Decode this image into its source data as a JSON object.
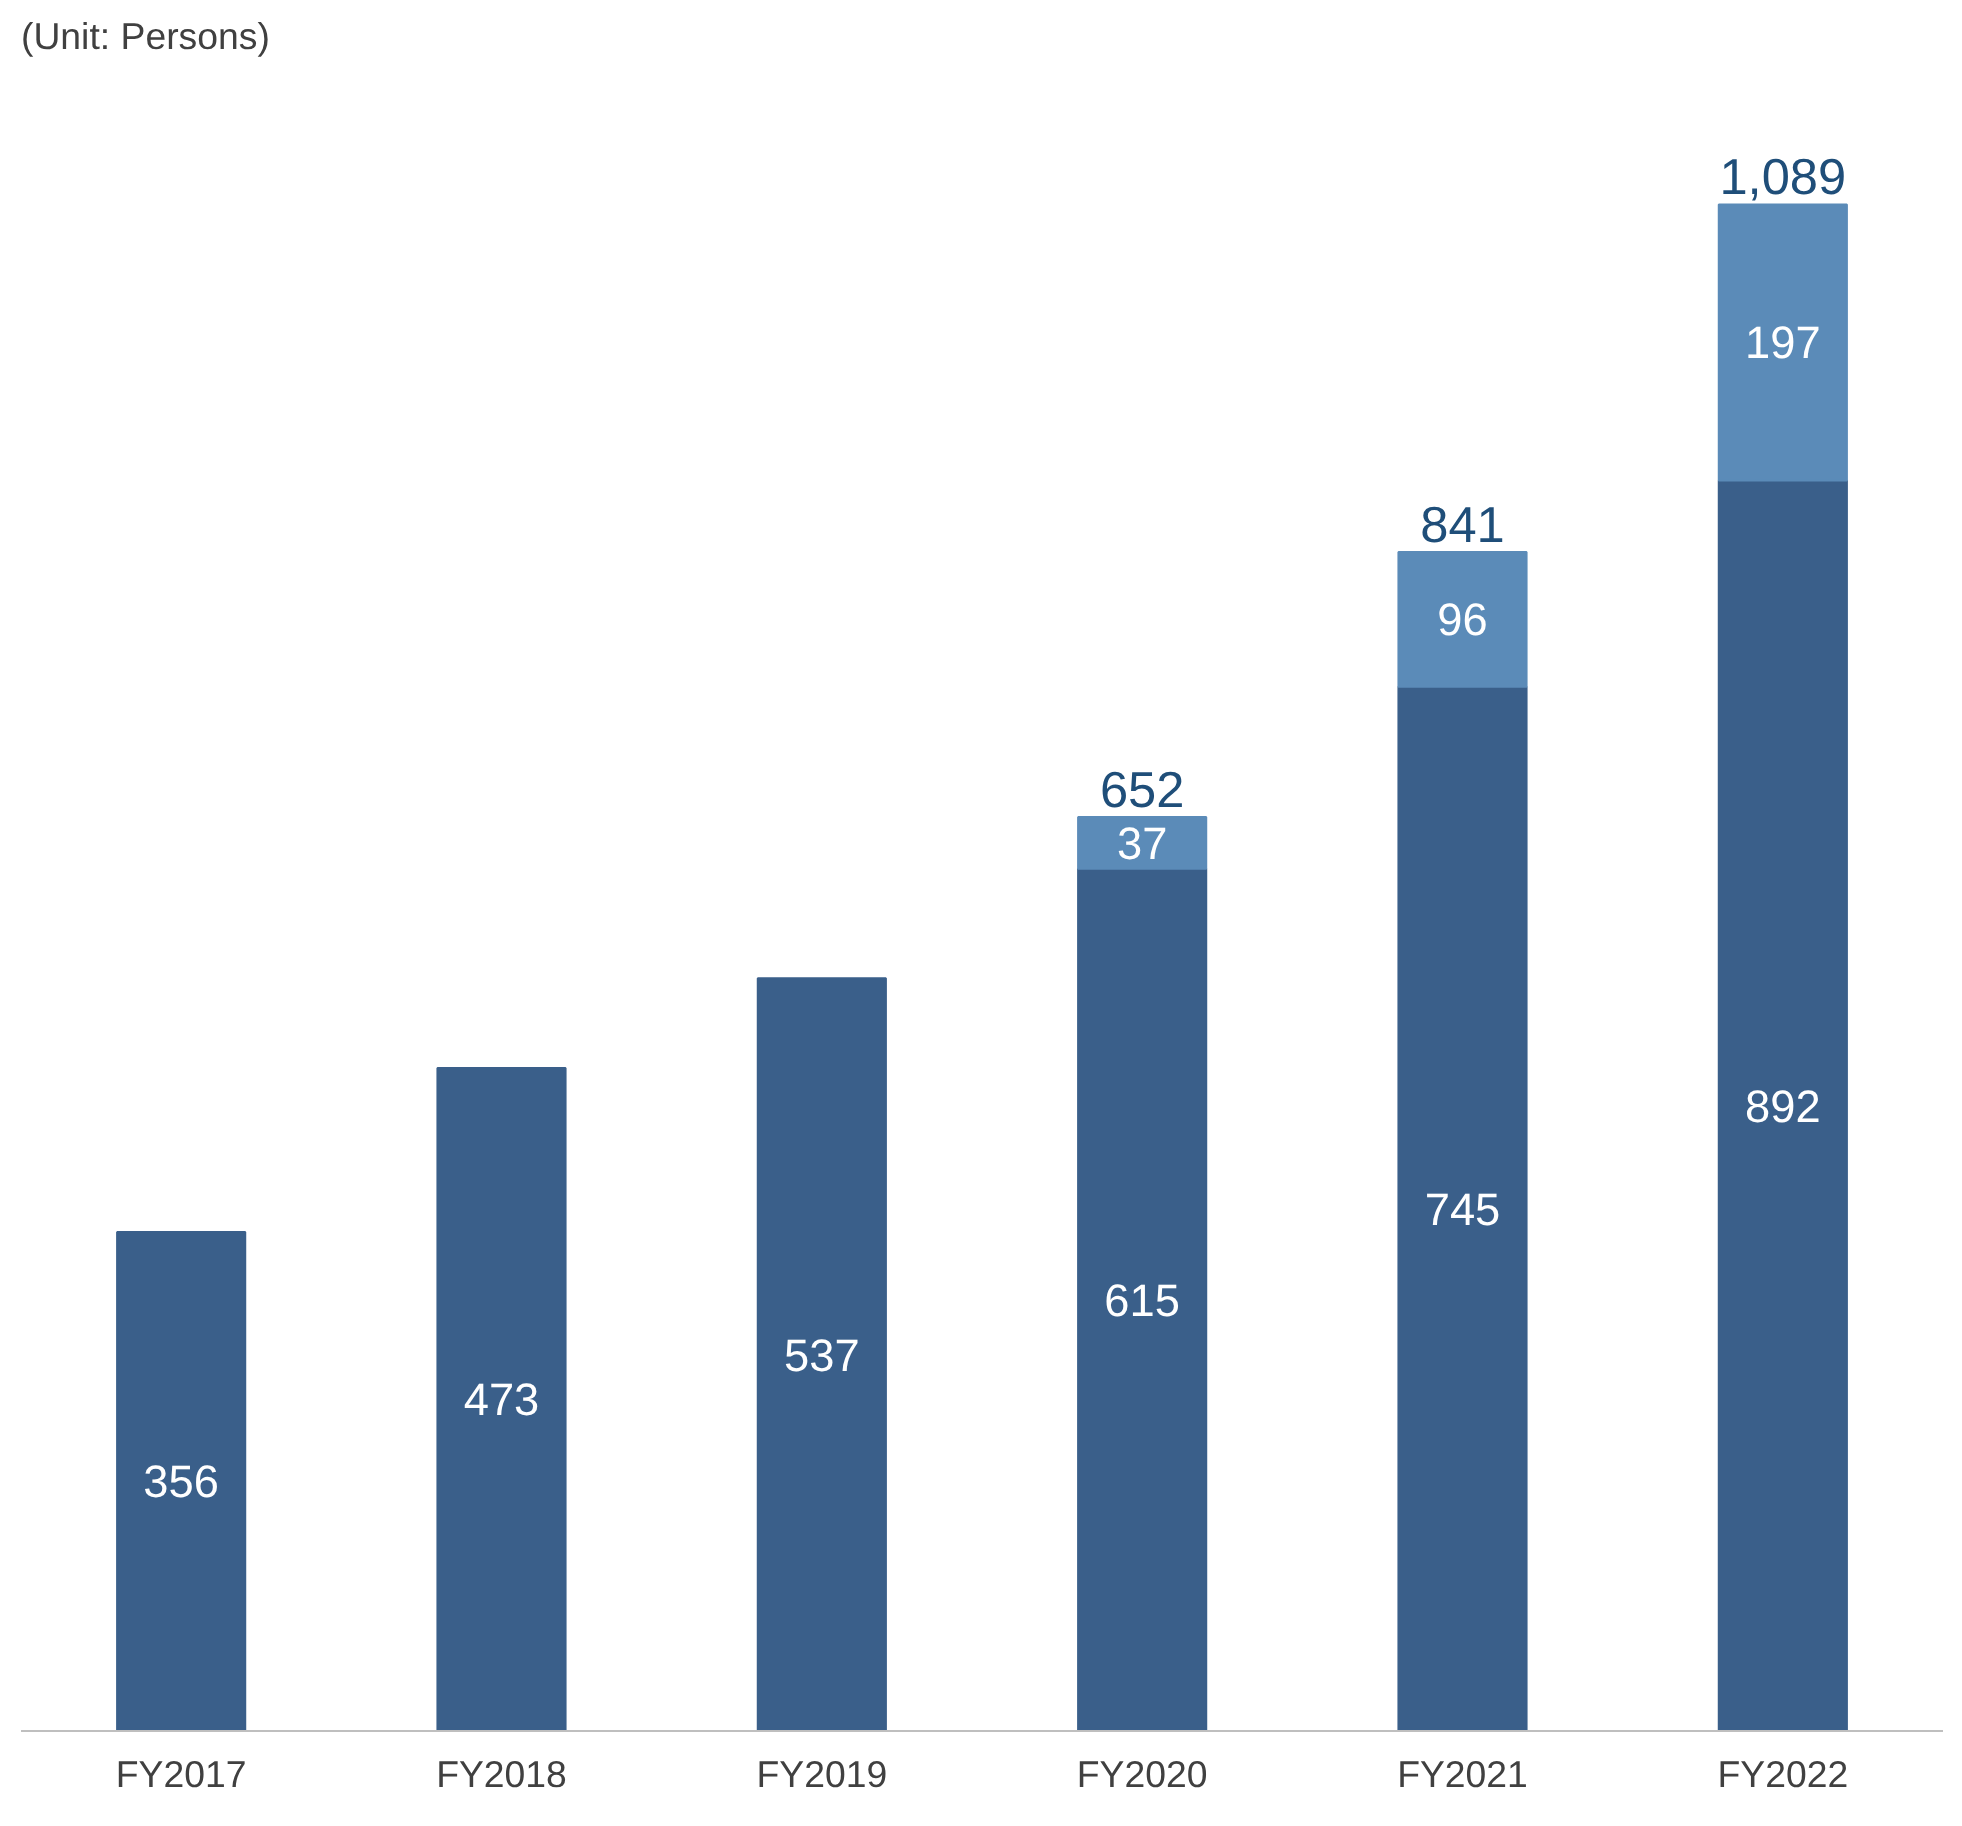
{
  "chart_data": {
    "type": "bar",
    "stacked": true,
    "data_labels": true,
    "categories": [
      "FY2017",
      "FY2018",
      "FY2019",
      "FY2020",
      "FY2021",
      "FY2022"
    ],
    "series": [
      {
        "color": "#3a5f8a",
        "values": [
          356,
          473,
          537,
          615,
          745,
          892
        ]
      },
      {
        "color": "#5b8bb8",
        "values": [
          null,
          null,
          null,
          37,
          96,
          197
        ]
      }
    ],
    "totals": [
      null,
      null,
      null,
      "652",
      "841",
      "1,089"
    ],
    "annotations": [
      "(Unit: Persons)"
    ]
  }
}
